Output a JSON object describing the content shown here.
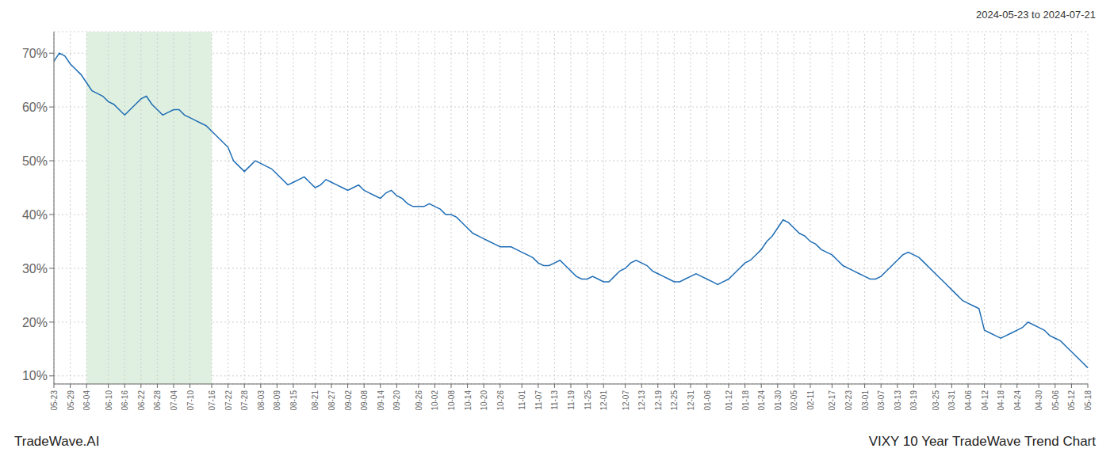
{
  "chart_data": {
    "type": "line",
    "title": "VIXY 10 Year TradeWave Trend Chart",
    "subtitle": "2024-05-23 to 2024-07-21",
    "annotations": [
      "TradeWave.AI"
    ],
    "color": "#1e6db5",
    "grid": true,
    "shaded_region": {
      "start": "06-04",
      "end": "07-16",
      "color": "#dff0e0"
    },
    "ylim": [
      0.085,
      0.74
    ],
    "yticks": [
      {
        "value": 0.1,
        "label": "10%"
      },
      {
        "value": 0.2,
        "label": "20%"
      },
      {
        "value": 0.3,
        "label": "30%"
      },
      {
        "value": 0.4,
        "label": "40%"
      },
      {
        "value": 0.5,
        "label": "50%"
      },
      {
        "value": 0.6,
        "label": "60%"
      },
      {
        "value": 0.7,
        "label": "70%"
      }
    ],
    "categories": [
      "05-23",
      null,
      null,
      "05-29",
      null,
      null,
      "06-04",
      null,
      null,
      null,
      "06-10",
      null,
      null,
      "06-16",
      null,
      null,
      "06-22",
      null,
      null,
      "06-28",
      null,
      null,
      "07-04",
      null,
      null,
      "07-10",
      null,
      null,
      null,
      "07-16",
      null,
      null,
      "07-22",
      null,
      null,
      "07-28",
      null,
      null,
      "08-03",
      null,
      null,
      "08-09",
      null,
      null,
      "08-15",
      null,
      null,
      null,
      "08-21",
      null,
      null,
      "08-27",
      null,
      null,
      "09-02",
      null,
      null,
      "09-08",
      null,
      null,
      "09-14",
      null,
      null,
      "09-20",
      null,
      null,
      null,
      "09-26",
      null,
      null,
      "10-02",
      null,
      null,
      "10-08",
      null,
      null,
      "10-14",
      null,
      null,
      "10-20",
      null,
      null,
      "10-26",
      null,
      null,
      null,
      "11-01",
      null,
      null,
      "11-07",
      null,
      null,
      "11-13",
      null,
      null,
      "11-19",
      null,
      null,
      "11-25",
      null,
      null,
      "12-01",
      null,
      null,
      null,
      "12-07",
      null,
      null,
      "12-13",
      null,
      null,
      "12-19",
      null,
      null,
      "12-25",
      null,
      null,
      "12-31",
      null,
      null,
      "01-06",
      null,
      null,
      null,
      "01-12",
      null,
      null,
      "01-18",
      null,
      null,
      "01-24",
      null,
      null,
      "01-30",
      null,
      null,
      "02-05",
      null,
      null,
      "02-11",
      null,
      null,
      null,
      "02-17",
      null,
      null,
      "02-23",
      null,
      null,
      "03-01",
      null,
      null,
      "03-07",
      null,
      null,
      "03-13",
      null,
      null,
      "03-19",
      null,
      null,
      null,
      "03-25",
      null,
      null,
      "03-31",
      null,
      null,
      "04-06",
      null,
      null,
      "04-12",
      null,
      null,
      "04-18",
      null,
      null,
      "04-24",
      null,
      null,
      null,
      "04-30",
      null,
      null,
      "05-06",
      null,
      null,
      "05-12",
      null,
      null,
      "05-18"
    ],
    "values": [
      0.685,
      0.7,
      0.695,
      0.68,
      0.67,
      0.66,
      0.645,
      0.63,
      0.625,
      0.62,
      0.61,
      0.605,
      0.595,
      0.585,
      0.595,
      0.605,
      0.615,
      0.62,
      0.605,
      0.595,
      0.585,
      0.59,
      0.595,
      0.595,
      0.585,
      0.58,
      0.575,
      0.57,
      0.565,
      0.555,
      0.545,
      0.535,
      0.525,
      0.5,
      0.49,
      0.48,
      0.49,
      0.5,
      0.495,
      0.49,
      0.485,
      0.475,
      0.465,
      0.455,
      0.46,
      0.465,
      0.47,
      0.46,
      0.45,
      0.455,
      0.465,
      0.46,
      0.455,
      0.45,
      0.445,
      0.45,
      0.455,
      0.445,
      0.44,
      0.435,
      0.43,
      0.44,
      0.445,
      0.435,
      0.43,
      0.42,
      0.415,
      0.415,
      0.415,
      0.42,
      0.415,
      0.41,
      0.4,
      0.4,
      0.395,
      0.385,
      0.375,
      0.365,
      0.36,
      0.355,
      0.35,
      0.345,
      0.34,
      0.34,
      0.34,
      0.335,
      0.33,
      0.325,
      0.32,
      0.31,
      0.305,
      0.305,
      0.31,
      0.315,
      0.305,
      0.295,
      0.285,
      0.28,
      0.28,
      0.285,
      0.28,
      0.275,
      0.275,
      0.285,
      0.295,
      0.3,
      0.31,
      0.315,
      0.31,
      0.305,
      0.295,
      0.29,
      0.285,
      0.28,
      0.275,
      0.275,
      0.28,
      0.285,
      0.29,
      0.285,
      0.28,
      0.275,
      0.27,
      0.275,
      0.28,
      0.29,
      0.3,
      0.31,
      0.315,
      0.325,
      0.335,
      0.35,
      0.36,
      0.375,
      0.39,
      0.385,
      0.375,
      0.365,
      0.36,
      0.35,
      0.345,
      0.335,
      0.33,
      0.325,
      0.315,
      0.305,
      0.3,
      0.295,
      0.29,
      0.285,
      0.28,
      0.28,
      0.285,
      0.295,
      0.305,
      0.315,
      0.325,
      0.33,
      0.325,
      0.32,
      0.31,
      0.3,
      0.29,
      0.28,
      0.27,
      0.26,
      0.25,
      0.24,
      0.235,
      0.23,
      0.225,
      0.185,
      0.18,
      0.175,
      0.17,
      0.175,
      0.18,
      0.185,
      0.19,
      0.2,
      0.195,
      0.19,
      0.185,
      0.175,
      0.17,
      0.165,
      0.155,
      0.145,
      0.135,
      0.125,
      0.115
    ]
  }
}
